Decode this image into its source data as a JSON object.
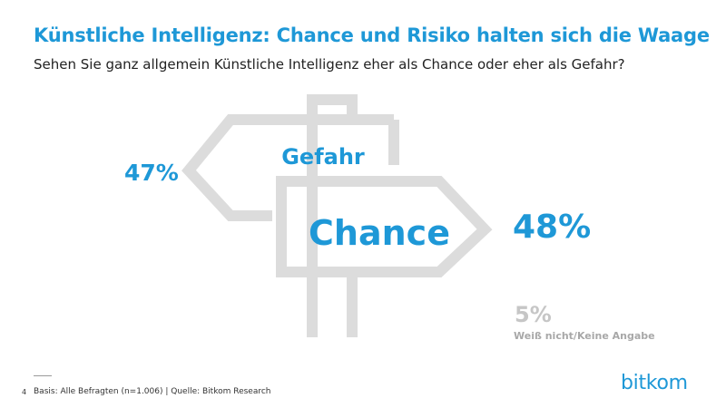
{
  "title": "Künstliche Intelligenz: Chance und Risiko halten sich die Waage",
  "subtitle": "Sehen Sie ganz allgemein Künstliche Intelligenz eher als Chance oder eher als Gefahr?",
  "chart_data": {
    "type": "pie",
    "categories": [
      "Gefahr",
      "Chance",
      "Weiß nicht/Keine Angabe"
    ],
    "values": [
      47,
      48,
      5
    ],
    "value_labels": [
      "47%",
      "48%",
      "5%"
    ],
    "unit": "%"
  },
  "signs": {
    "gefahr_label": "Gefahr",
    "chance_label": "Chance"
  },
  "footer": {
    "page_number": "4",
    "source": "Basis: Alle Befragten (n=1.006) | Quelle: Bitkom Research",
    "logo": "bitkom"
  },
  "colors": {
    "accent": "#1e98d7",
    "sign_outline": "#dcdcdc",
    "muted": "#c6c6c6"
  }
}
